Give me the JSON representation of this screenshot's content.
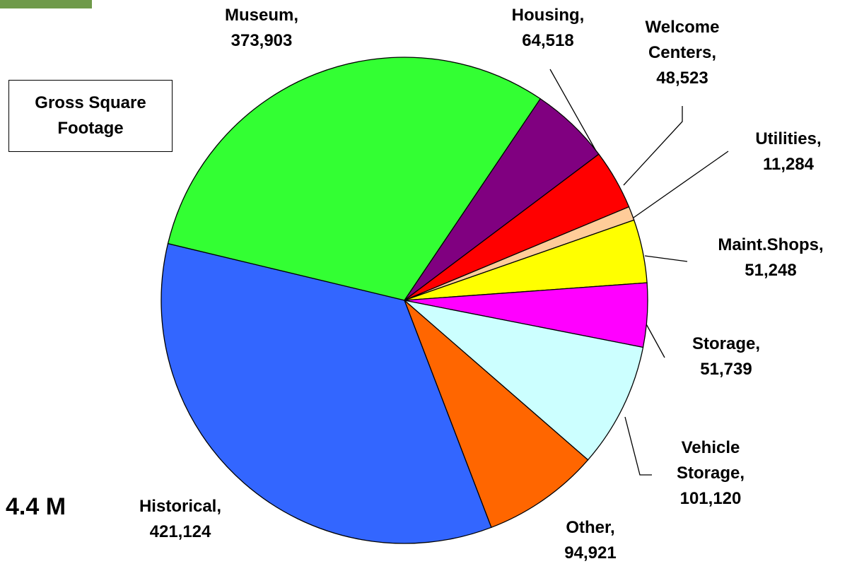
{
  "chart_data": {
    "type": "pie",
    "title": "Gross Square Footage",
    "annotation": "4.4 M",
    "categories": [
      "Museum,",
      "Housing,",
      "Welcome Centers,",
      "Utilities,",
      "Maint.Shops,",
      "Storage,",
      "Vehicle Storage,",
      "Other,",
      "Historical,"
    ],
    "values": [
      373903,
      64518,
      48523,
      11284,
      51248,
      51739,
      101120,
      94921,
      421124
    ],
    "value_labels": [
      "373,903",
      "64,518",
      "48,523",
      "11,284",
      "51,248",
      "51,739",
      "101,120",
      "94,921",
      "421,124"
    ],
    "colors": [
      "#33ff33",
      "#800080",
      "#ff0000",
      "#ffcc99",
      "#ffff00",
      "#ff00ff",
      "#ccffff",
      "#ff6600",
      "#3366ff"
    ]
  }
}
